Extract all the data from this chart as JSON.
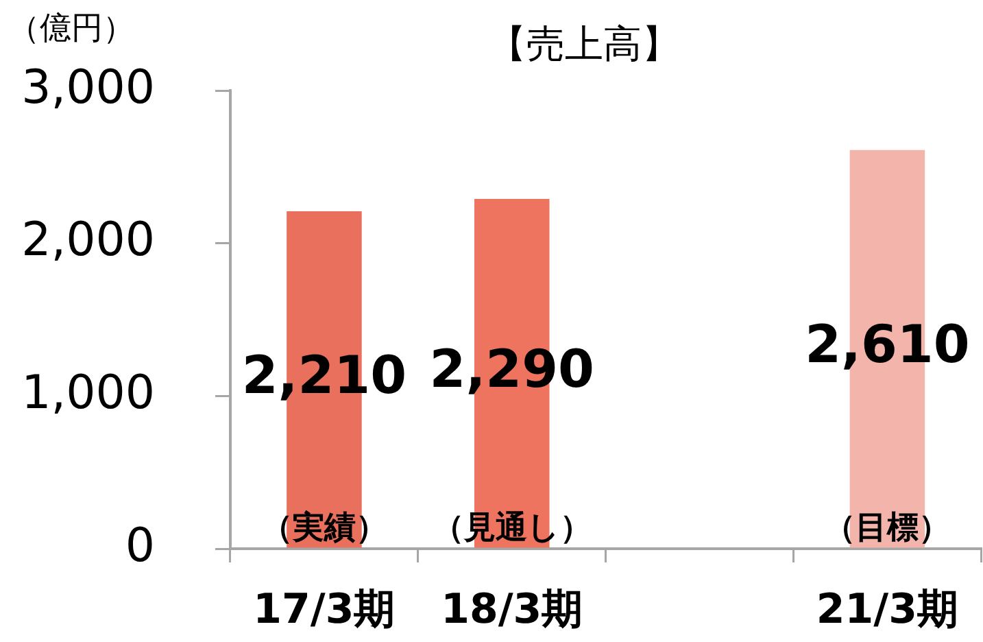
{
  "chart_data": {
    "type": "bar",
    "title": "【売上高】",
    "ylabel": "（億円）",
    "categories": [
      "17/3期",
      "18/3期",
      null,
      "21/3期"
    ],
    "values": [
      2210,
      2290,
      null,
      2610
    ],
    "value_labels": [
      "2,210",
      "2,290",
      null,
      "2,610"
    ],
    "colors": [
      "#e8705c",
      "#ee745f",
      null,
      "#f2b4ab"
    ],
    "ylim": [
      0,
      3000
    ],
    "yticks": [
      0,
      {
        "value": 1000,
        "label": "1,000"
      },
      {
        "value": 2000,
        "label": "2,000"
      },
      {
        "value": 3000,
        "label": "3,000"
      }
    ],
    "grid": false,
    "legend": false,
    "annotations": [
      "（実績）",
      "（見通し）",
      "（目標）"
    ]
  }
}
